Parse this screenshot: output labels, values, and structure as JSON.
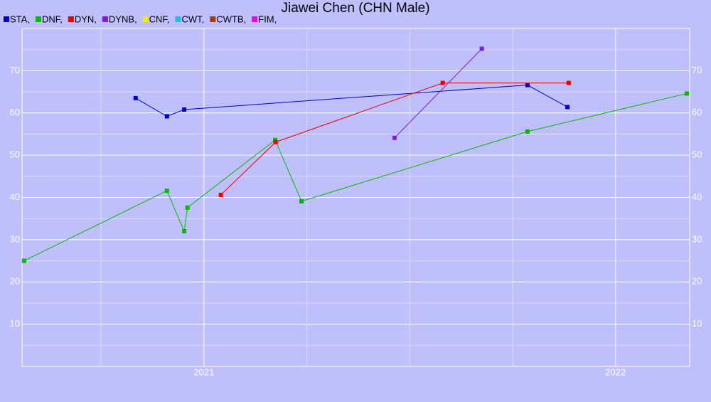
{
  "chart_data": {
    "type": "line",
    "title": "Jiawei Chen (CHN Male)",
    "series": [
      {
        "name": "STA,",
        "color": "#0000cc",
        "x": [
          2020.834,
          2020.91,
          2020.952,
          2021.786,
          2021.883
        ],
        "values": [
          63.5,
          59.2,
          60.8,
          66.6,
          61.4
        ]
      },
      {
        "name": "DNF,",
        "color": "#00bb00",
        "x": [
          2020.563,
          2020.91,
          2020.952,
          2020.96,
          2021.173,
          2021.237,
          2021.786,
          2022.173
        ],
        "values": [
          25,
          41.6,
          32.0,
          37.6,
          53.6,
          39.1,
          55.6,
          64.6
        ]
      },
      {
        "name": "DYN,",
        "color": "#ee0000",
        "x": [
          2021.041,
          2021.174,
          2021.58,
          2021.886
        ],
        "values": [
          40.6,
          53.1,
          67.1,
          67.1
        ]
      },
      {
        "name": "DYNB,",
        "color": "#7a1fd6",
        "x": [
          2021.463,
          2021.675
        ],
        "values": [
          54.1,
          75.2
        ]
      },
      {
        "name": "CNF,",
        "color": "#eeee00",
        "x": [],
        "values": []
      },
      {
        "name": "CWT,",
        "color": "#22bbdd",
        "x": [],
        "values": []
      },
      {
        "name": "CWTB,",
        "color": "#a04010",
        "x": [],
        "values": []
      },
      {
        "name": "FIM,",
        "color": "#ee00ee",
        "x": [],
        "values": []
      }
    ],
    "xlim": [
      2020.558,
      2022.18
    ],
    "xticks": [
      2021,
      2022
    ],
    "xminor": [
      2020.75,
      2021.25,
      2021.5,
      2021.75
    ],
    "ylim": [
      0,
      80
    ],
    "yticks": [
      10,
      20,
      30,
      40,
      50,
      60,
      70
    ],
    "yminor": [
      5,
      15,
      25,
      35,
      45,
      55,
      65,
      75
    ],
    "grid": true
  }
}
